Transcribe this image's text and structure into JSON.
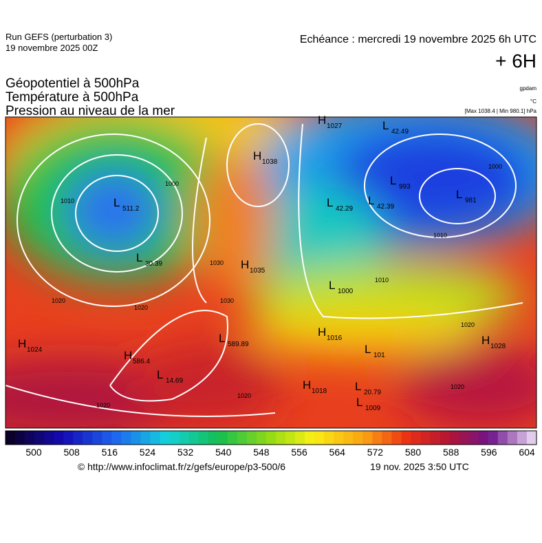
{
  "header": {
    "run": "Run GEFS (perturbation 3)",
    "run_date": "19 novembre 2025 00Z",
    "echeance": "Echéance : mercredi 19 novembre 2025 6h UTC",
    "lead": "+ 6H"
  },
  "titles": [
    "Géopotentiel à 500hPa",
    "Température à 500hPa",
    "Pression au niveau de la mer"
  ],
  "units": [
    "gpdam",
    "°C",
    "[Max 1038.4 | Min 980.1] hPa"
  ],
  "centers": [
    {
      "kind": "H",
      "value": "1024"
    },
    {
      "kind": "H",
      "value": "586.4"
    },
    {
      "kind": "L",
      "value": "14.69"
    },
    {
      "kind": "H",
      "value": "1035"
    },
    {
      "kind": "L",
      "value": "589.89"
    },
    {
      "kind": "H",
      "value": "1038"
    },
    {
      "kind": "H",
      "value": "1027"
    },
    {
      "kind": "L",
      "value": "42.49"
    },
    {
      "kind": "L",
      "value": "993"
    },
    {
      "kind": "L",
      "value": "981"
    },
    {
      "kind": "L",
      "value": "42.29"
    },
    {
      "kind": "L",
      "value": "42.39"
    },
    {
      "kind": "L",
      "value": "1000"
    },
    {
      "kind": "H",
      "value": "1016"
    },
    {
      "kind": "L",
      "value": "101"
    },
    {
      "kind": "H",
      "value": "1018"
    },
    {
      "kind": "L",
      "value": "20.79"
    },
    {
      "kind": "L",
      "value": "1009"
    },
    {
      "kind": "H",
      "value": "1028"
    },
    {
      "kind": "L",
      "value": "511.2"
    },
    {
      "kind": "L",
      "value": "30.39"
    }
  ],
  "contour_labels": [
    "1010",
    "1000",
    "1020",
    "1030",
    "1030",
    "1020",
    "1010",
    "1000",
    "1010",
    "1020",
    "1020",
    "1020",
    "1020"
  ],
  "colorbar": {
    "labels": [
      "500",
      "508",
      "516",
      "524",
      "532",
      "540",
      "548",
      "556",
      "564",
      "572",
      "580",
      "588",
      "596",
      "604"
    ]
  },
  "footer": {
    "source": "© http://www.infoclimat.fr/z/gefs/europe/p3-500/6",
    "generated": "19 nov. 2025  3:50 UTC"
  }
}
